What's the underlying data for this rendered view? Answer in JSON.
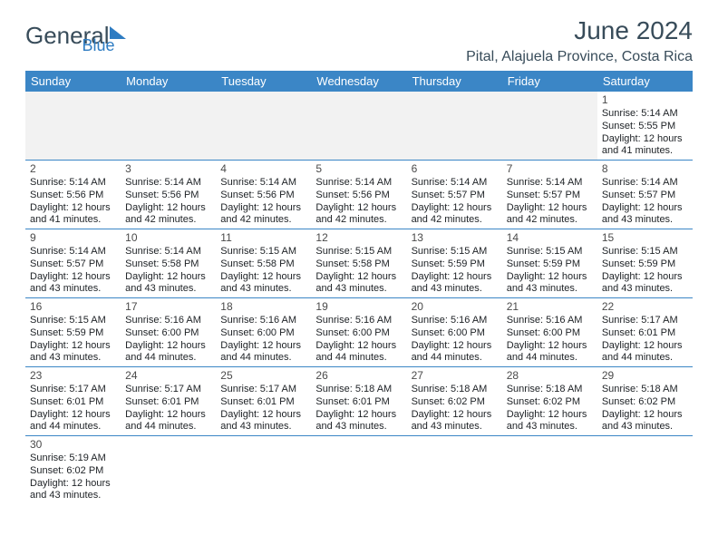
{
  "brand": {
    "part1": "General",
    "part2": "Blue"
  },
  "title": "June 2024",
  "location": "Pital, Alajuela Province, Costa Rica",
  "colors": {
    "header_bg": "#3b86c6",
    "header_fg": "#ffffff",
    "text": "#202428",
    "brand_dark": "#384c5a",
    "brand_blue": "#2e7cc2",
    "row_alt": "#f2f2f2",
    "border": "#3b86c6"
  },
  "days": [
    "Sunday",
    "Monday",
    "Tuesday",
    "Wednesday",
    "Thursday",
    "Friday",
    "Saturday"
  ],
  "weeks": [
    [
      null,
      null,
      null,
      null,
      null,
      null,
      {
        "n": "1",
        "sr": "5:14 AM",
        "ss": "5:55 PM",
        "dl": "12 hours and 41 minutes."
      }
    ],
    [
      {
        "n": "2",
        "sr": "5:14 AM",
        "ss": "5:56 PM",
        "dl": "12 hours and 41 minutes."
      },
      {
        "n": "3",
        "sr": "5:14 AM",
        "ss": "5:56 PM",
        "dl": "12 hours and 42 minutes."
      },
      {
        "n": "4",
        "sr": "5:14 AM",
        "ss": "5:56 PM",
        "dl": "12 hours and 42 minutes."
      },
      {
        "n": "5",
        "sr": "5:14 AM",
        "ss": "5:56 PM",
        "dl": "12 hours and 42 minutes."
      },
      {
        "n": "6",
        "sr": "5:14 AM",
        "ss": "5:57 PM",
        "dl": "12 hours and 42 minutes."
      },
      {
        "n": "7",
        "sr": "5:14 AM",
        "ss": "5:57 PM",
        "dl": "12 hours and 42 minutes."
      },
      {
        "n": "8",
        "sr": "5:14 AM",
        "ss": "5:57 PM",
        "dl": "12 hours and 43 minutes."
      }
    ],
    [
      {
        "n": "9",
        "sr": "5:14 AM",
        "ss": "5:57 PM",
        "dl": "12 hours and 43 minutes."
      },
      {
        "n": "10",
        "sr": "5:14 AM",
        "ss": "5:58 PM",
        "dl": "12 hours and 43 minutes."
      },
      {
        "n": "11",
        "sr": "5:15 AM",
        "ss": "5:58 PM",
        "dl": "12 hours and 43 minutes."
      },
      {
        "n": "12",
        "sr": "5:15 AM",
        "ss": "5:58 PM",
        "dl": "12 hours and 43 minutes."
      },
      {
        "n": "13",
        "sr": "5:15 AM",
        "ss": "5:59 PM",
        "dl": "12 hours and 43 minutes."
      },
      {
        "n": "14",
        "sr": "5:15 AM",
        "ss": "5:59 PM",
        "dl": "12 hours and 43 minutes."
      },
      {
        "n": "15",
        "sr": "5:15 AM",
        "ss": "5:59 PM",
        "dl": "12 hours and 43 minutes."
      }
    ],
    [
      {
        "n": "16",
        "sr": "5:15 AM",
        "ss": "5:59 PM",
        "dl": "12 hours and 43 minutes."
      },
      {
        "n": "17",
        "sr": "5:16 AM",
        "ss": "6:00 PM",
        "dl": "12 hours and 44 minutes."
      },
      {
        "n": "18",
        "sr": "5:16 AM",
        "ss": "6:00 PM",
        "dl": "12 hours and 44 minutes."
      },
      {
        "n": "19",
        "sr": "5:16 AM",
        "ss": "6:00 PM",
        "dl": "12 hours and 44 minutes."
      },
      {
        "n": "20",
        "sr": "5:16 AM",
        "ss": "6:00 PM",
        "dl": "12 hours and 44 minutes."
      },
      {
        "n": "21",
        "sr": "5:16 AM",
        "ss": "6:00 PM",
        "dl": "12 hours and 44 minutes."
      },
      {
        "n": "22",
        "sr": "5:17 AM",
        "ss": "6:01 PM",
        "dl": "12 hours and 44 minutes."
      }
    ],
    [
      {
        "n": "23",
        "sr": "5:17 AM",
        "ss": "6:01 PM",
        "dl": "12 hours and 44 minutes."
      },
      {
        "n": "24",
        "sr": "5:17 AM",
        "ss": "6:01 PM",
        "dl": "12 hours and 44 minutes."
      },
      {
        "n": "25",
        "sr": "5:17 AM",
        "ss": "6:01 PM",
        "dl": "12 hours and 43 minutes."
      },
      {
        "n": "26",
        "sr": "5:18 AM",
        "ss": "6:01 PM",
        "dl": "12 hours and 43 minutes."
      },
      {
        "n": "27",
        "sr": "5:18 AM",
        "ss": "6:02 PM",
        "dl": "12 hours and 43 minutes."
      },
      {
        "n": "28",
        "sr": "5:18 AM",
        "ss": "6:02 PM",
        "dl": "12 hours and 43 minutes."
      },
      {
        "n": "29",
        "sr": "5:18 AM",
        "ss": "6:02 PM",
        "dl": "12 hours and 43 minutes."
      }
    ],
    [
      {
        "n": "30",
        "sr": "5:19 AM",
        "ss": "6:02 PM",
        "dl": "12 hours and 43 minutes."
      },
      null,
      null,
      null,
      null,
      null,
      null
    ]
  ],
  "labels": {
    "sunrise": "Sunrise:",
    "sunset": "Sunset:",
    "daylight": "Daylight:"
  }
}
